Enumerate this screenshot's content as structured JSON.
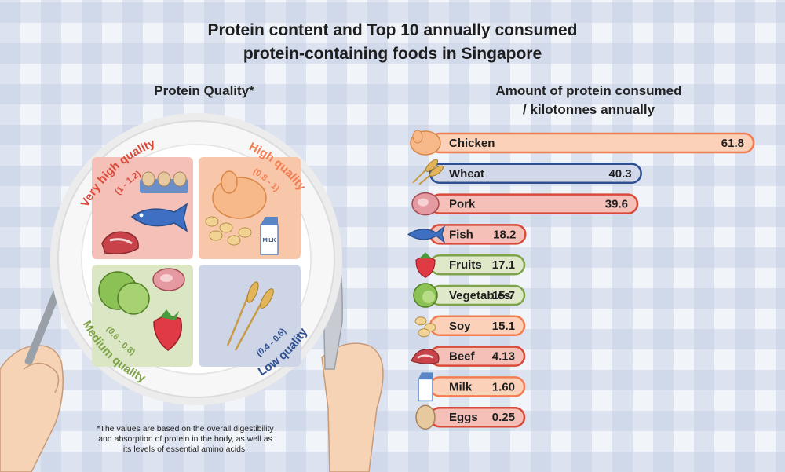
{
  "title_line1": "Protein content and Top 10 annually consumed",
  "title_line2": "protein-containing foods in Singapore",
  "plate": {
    "heading": "Protein Quality*",
    "quadrants": [
      {
        "name": "Very high quality",
        "range": "(1 - 1.2)",
        "color": "#d94a3a",
        "fill": "#f4c0b7"
      },
      {
        "name": "High quality",
        "range": "(0.8 - 1)",
        "color": "#f47c52",
        "fill": "#f8c6a8"
      },
      {
        "name": "Medium quality",
        "range": "(0.6 - 0.8)",
        "color": "#7fa34a",
        "fill": "#dbe6c4"
      },
      {
        "name": "Low quality",
        "range": "(0.4 - 0.6)",
        "color": "#2f4f93",
        "fill": "#cdd5e6"
      }
    ],
    "milk_carton_text": "MILK"
  },
  "footnote_line1": "*The values are based on the overall digestibility",
  "footnote_line2": "and absorption of protein in the body, as well as",
  "footnote_line3": "its levels of essential amino acids.",
  "chart_data": {
    "type": "bar",
    "orientation": "horizontal",
    "title_line1": "Amount of protein consumed",
    "title_line2": "/ kilotonnes annually",
    "categories": [
      "Chicken",
      "Wheat",
      "Pork",
      "Fish",
      "Fruits",
      "Vegetables",
      "Soy",
      "Beef",
      "Milk",
      "Eggs"
    ],
    "values": [
      61.8,
      40.3,
      39.6,
      18.2,
      17.1,
      15.7,
      15.1,
      4.13,
      1.6,
      0.25
    ],
    "value_labels": [
      "61.8",
      "40.3",
      "39.6",
      "18.2",
      "17.1",
      "15.7",
      "15.1",
      "4.13",
      "1.60",
      "0.25"
    ],
    "quality_group": [
      "high",
      "low",
      "very-high",
      "very-high",
      "medium",
      "medium",
      "high",
      "very-high",
      "high",
      "very-high"
    ],
    "group_colors": {
      "very-high": {
        "fill": "#f4c0b7",
        "stroke": "#d94a3a"
      },
      "high": {
        "fill": "#fbd2b9",
        "stroke": "#f47c52"
      },
      "medium": {
        "fill": "#dfe8c9",
        "stroke": "#7fa34a"
      },
      "low": {
        "fill": "#d0d8ea",
        "stroke": "#2f4f93"
      }
    },
    "icons": [
      "chicken-icon",
      "wheat-icon",
      "pork-icon",
      "fish-icon",
      "strawberry-icon",
      "cabbage-icon",
      "soy-icon",
      "beef-icon",
      "milk-icon",
      "egg-icon"
    ],
    "grid": false,
    "legend": "none"
  }
}
